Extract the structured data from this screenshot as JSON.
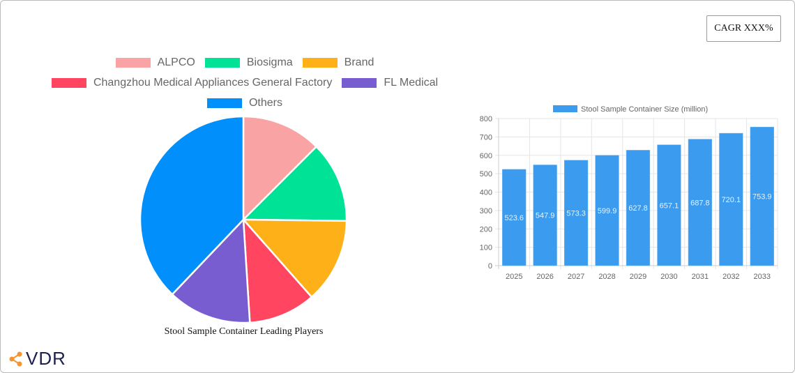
{
  "cagr_label": "CAGR XXX%",
  "logo_text": "VDR",
  "chart_data": [
    {
      "type": "pie",
      "title": "Stool Sample Container Leading Players",
      "legend_position": "top",
      "labels": [
        "ALPCO",
        "Biosigma",
        "Brand",
        "Changzhou Medical Appliances General Factory",
        "FL Medical",
        "Others"
      ],
      "values": [
        12.5,
        12.7,
        13.3,
        10.5,
        13.1,
        37.9
      ],
      "colors": [
        "#f9a3a4",
        "#00e396",
        "#feb019",
        "#ff4560",
        "#775dd0",
        "#008ffb"
      ]
    },
    {
      "type": "bar",
      "categories": [
        "2025",
        "2026",
        "2027",
        "2028",
        "2029",
        "2030",
        "2031",
        "2032",
        "2033"
      ],
      "series": [
        {
          "name": "Stool Sample Container Size (million)",
          "values": [
            523.6,
            547.9,
            573.3,
            599.9,
            627.8,
            657.1,
            687.8,
            720.1,
            753.9
          ]
        }
      ],
      "ylim": [
        0,
        800
      ],
      "yticks": [
        "0",
        "100",
        "200",
        "300",
        "400",
        "500",
        "600",
        "700",
        "800"
      ],
      "grid": true,
      "legend_position": "top",
      "color": "#3a9bef"
    }
  ]
}
